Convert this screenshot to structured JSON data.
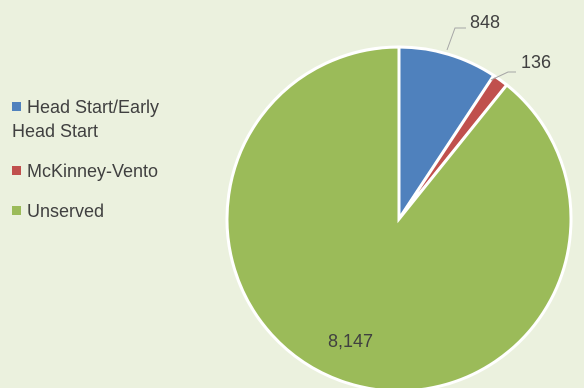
{
  "chart_data": {
    "type": "pie",
    "title": "",
    "categories": [
      "Head Start/Early Head Start",
      "McKinney-Vento",
      "Unserved"
    ],
    "values": [
      848,
      136,
      8147
    ],
    "data_labels": [
      "848",
      "136",
      "8,147"
    ],
    "colors": [
      "#4f81bd",
      "#c0504d",
      "#9bbb59"
    ],
    "legend_placement": "left"
  },
  "legend": {
    "items": [
      {
        "label": "Head Start/Early Head Start",
        "color": "#4f81bd"
      },
      {
        "label": "McKinney-Vento",
        "color": "#c0504d"
      },
      {
        "label": "Unserved",
        "color": "#9bbb59"
      }
    ]
  }
}
